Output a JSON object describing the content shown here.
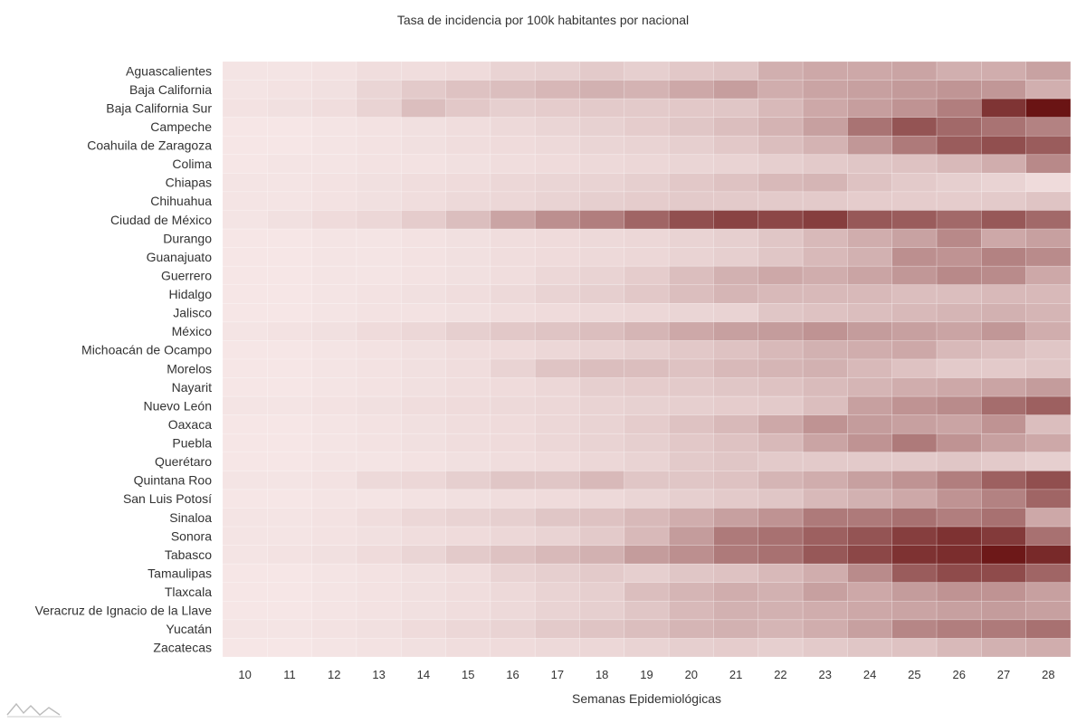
{
  "chart_data": {
    "type": "heatmap",
    "title": "Tasa de incidencia por 100k habitantes por nacional",
    "xlabel": "Semanas Epidemiológicas",
    "ylabel": "",
    "x": [
      "10",
      "11",
      "12",
      "13",
      "14",
      "15",
      "16",
      "17",
      "18",
      "19",
      "20",
      "21",
      "22",
      "23",
      "24",
      "25",
      "26",
      "27",
      "28"
    ],
    "y": [
      "Aguascalientes",
      "Baja California",
      "Baja California Sur",
      "Campeche",
      "Coahuila de Zaragoza",
      "Colima",
      "Chiapas",
      "Chihuahua",
      "Ciudad de México",
      "Durango",
      "Guanajuato",
      "Guerrero",
      "Hidalgo",
      "Jalisco",
      "México",
      "Michoacán de Ocampo",
      "Morelos",
      "Nayarit",
      "Nuevo León",
      "Oaxaca",
      "Puebla",
      "Querétaro",
      "Quintana Roo",
      "San Luis Potosí",
      "Sinaloa",
      "Sonora",
      "Tabasco",
      "Tamaulipas",
      "Tlaxcala",
      "Veracruz de Ignacio de la Llave",
      "Yucatán",
      "Zacatecas"
    ],
    "z": [
      [
        0.02,
        0.02,
        0.03,
        0.05,
        0.05,
        0.06,
        0.1,
        0.11,
        0.14,
        0.12,
        0.15,
        0.17,
        0.27,
        0.3,
        0.3,
        0.32,
        0.27,
        0.28,
        0.33
      ],
      [
        0.02,
        0.03,
        0.04,
        0.09,
        0.14,
        0.18,
        0.2,
        0.23,
        0.26,
        0.25,
        0.3,
        0.35,
        0.28,
        0.32,
        0.34,
        0.37,
        0.39,
        0.38,
        0.27
      ],
      [
        0.03,
        0.04,
        0.05,
        0.1,
        0.2,
        0.15,
        0.12,
        0.13,
        0.14,
        0.14,
        0.15,
        0.16,
        0.22,
        0.3,
        0.35,
        0.4,
        0.5,
        0.85,
        1.0
      ],
      [
        0.01,
        0.01,
        0.02,
        0.03,
        0.04,
        0.05,
        0.07,
        0.09,
        0.11,
        0.13,
        0.16,
        0.2,
        0.25,
        0.34,
        0.55,
        0.7,
        0.6,
        0.55,
        0.48
      ],
      [
        0.01,
        0.01,
        0.02,
        0.03,
        0.04,
        0.05,
        0.06,
        0.07,
        0.09,
        0.1,
        0.12,
        0.15,
        0.2,
        0.25,
        0.38,
        0.52,
        0.66,
        0.72,
        0.66
      ],
      [
        0.01,
        0.02,
        0.02,
        0.03,
        0.03,
        0.04,
        0.05,
        0.06,
        0.07,
        0.08,
        0.09,
        0.1,
        0.12,
        0.14,
        0.16,
        0.18,
        0.22,
        0.28,
        0.45
      ],
      [
        0.02,
        0.02,
        0.03,
        0.04,
        0.05,
        0.06,
        0.08,
        0.09,
        0.1,
        0.12,
        0.15,
        0.18,
        0.22,
        0.24,
        0.18,
        0.14,
        0.12,
        0.1,
        0.06
      ],
      [
        0.02,
        0.02,
        0.03,
        0.04,
        0.05,
        0.07,
        0.08,
        0.1,
        0.12,
        0.13,
        0.14,
        0.14,
        0.14,
        0.14,
        0.13,
        0.13,
        0.13,
        0.14,
        0.17
      ],
      [
        0.02,
        0.04,
        0.06,
        0.08,
        0.13,
        0.2,
        0.32,
        0.42,
        0.5,
        0.62,
        0.72,
        0.78,
        0.76,
        0.8,
        0.68,
        0.66,
        0.6,
        0.68,
        0.6
      ],
      [
        0.01,
        0.01,
        0.02,
        0.02,
        0.03,
        0.04,
        0.05,
        0.06,
        0.07,
        0.08,
        0.1,
        0.12,
        0.16,
        0.22,
        0.28,
        0.33,
        0.45,
        0.3,
        0.34
      ],
      [
        0.01,
        0.01,
        0.02,
        0.02,
        0.03,
        0.04,
        0.05,
        0.06,
        0.07,
        0.08,
        0.1,
        0.12,
        0.16,
        0.22,
        0.26,
        0.42,
        0.4,
        0.48,
        0.44
      ],
      [
        0.01,
        0.01,
        0.02,
        0.02,
        0.03,
        0.04,
        0.05,
        0.08,
        0.1,
        0.13,
        0.2,
        0.26,
        0.3,
        0.28,
        0.32,
        0.38,
        0.45,
        0.44,
        0.3
      ],
      [
        0.01,
        0.01,
        0.02,
        0.03,
        0.04,
        0.05,
        0.07,
        0.1,
        0.12,
        0.15,
        0.2,
        0.24,
        0.22,
        0.22,
        0.22,
        0.2,
        0.2,
        0.22,
        0.22
      ],
      [
        0.01,
        0.01,
        0.02,
        0.03,
        0.03,
        0.04,
        0.05,
        0.06,
        0.07,
        0.08,
        0.09,
        0.1,
        0.16,
        0.18,
        0.2,
        0.22,
        0.24,
        0.26,
        0.24
      ],
      [
        0.02,
        0.03,
        0.04,
        0.06,
        0.08,
        0.12,
        0.15,
        0.17,
        0.2,
        0.24,
        0.3,
        0.34,
        0.36,
        0.4,
        0.36,
        0.34,
        0.32,
        0.38,
        0.28
      ],
      [
        0.01,
        0.01,
        0.02,
        0.03,
        0.04,
        0.05,
        0.06,
        0.08,
        0.1,
        0.12,
        0.15,
        0.18,
        0.22,
        0.26,
        0.28,
        0.3,
        0.22,
        0.2,
        0.16
      ],
      [
        0.01,
        0.01,
        0.02,
        0.03,
        0.04,
        0.05,
        0.1,
        0.17,
        0.2,
        0.2,
        0.18,
        0.22,
        0.24,
        0.26,
        0.22,
        0.18,
        0.14,
        0.14,
        0.16
      ],
      [
        0.01,
        0.01,
        0.02,
        0.03,
        0.04,
        0.05,
        0.06,
        0.08,
        0.12,
        0.13,
        0.14,
        0.16,
        0.18,
        0.21,
        0.24,
        0.28,
        0.3,
        0.32,
        0.36
      ],
      [
        0.02,
        0.02,
        0.03,
        0.04,
        0.05,
        0.06,
        0.07,
        0.08,
        0.1,
        0.11,
        0.12,
        0.13,
        0.14,
        0.2,
        0.34,
        0.4,
        0.44,
        0.58,
        0.64
      ],
      [
        0.01,
        0.01,
        0.02,
        0.03,
        0.04,
        0.05,
        0.06,
        0.08,
        0.1,
        0.13,
        0.18,
        0.22,
        0.3,
        0.4,
        0.36,
        0.34,
        0.32,
        0.4,
        0.2
      ],
      [
        0.01,
        0.01,
        0.02,
        0.03,
        0.04,
        0.05,
        0.06,
        0.08,
        0.1,
        0.12,
        0.15,
        0.18,
        0.22,
        0.32,
        0.4,
        0.52,
        0.4,
        0.34,
        0.3
      ],
      [
        0.01,
        0.01,
        0.02,
        0.02,
        0.03,
        0.04,
        0.05,
        0.06,
        0.08,
        0.1,
        0.14,
        0.16,
        0.14,
        0.14,
        0.14,
        0.14,
        0.16,
        0.14,
        0.12
      ],
      [
        0.02,
        0.02,
        0.03,
        0.07,
        0.08,
        0.12,
        0.16,
        0.16,
        0.22,
        0.16,
        0.16,
        0.18,
        0.24,
        0.28,
        0.34,
        0.4,
        0.5,
        0.64,
        0.72
      ],
      [
        0.01,
        0.01,
        0.02,
        0.02,
        0.03,
        0.04,
        0.05,
        0.06,
        0.07,
        0.09,
        0.12,
        0.14,
        0.16,
        0.22,
        0.26,
        0.3,
        0.4,
        0.48,
        0.62
      ],
      [
        0.02,
        0.02,
        0.03,
        0.05,
        0.08,
        0.1,
        0.12,
        0.16,
        0.18,
        0.22,
        0.28,
        0.34,
        0.4,
        0.52,
        0.52,
        0.56,
        0.5,
        0.56,
        0.3
      ],
      [
        0.02,
        0.02,
        0.03,
        0.04,
        0.05,
        0.06,
        0.08,
        0.1,
        0.14,
        0.22,
        0.36,
        0.52,
        0.56,
        0.64,
        0.7,
        0.8,
        0.86,
        0.82,
        0.56
      ],
      [
        0.02,
        0.03,
        0.04,
        0.06,
        0.09,
        0.14,
        0.18,
        0.22,
        0.26,
        0.36,
        0.42,
        0.52,
        0.56,
        0.68,
        0.76,
        0.86,
        0.88,
        0.98,
        0.9
      ],
      [
        0.01,
        0.01,
        0.02,
        0.03,
        0.04,
        0.05,
        0.1,
        0.12,
        0.14,
        0.12,
        0.16,
        0.18,
        0.22,
        0.28,
        0.44,
        0.66,
        0.74,
        0.74,
        0.62
      ],
      [
        0.01,
        0.01,
        0.02,
        0.03,
        0.04,
        0.05,
        0.07,
        0.1,
        0.12,
        0.2,
        0.24,
        0.28,
        0.26,
        0.34,
        0.3,
        0.36,
        0.4,
        0.4,
        0.34
      ],
      [
        0.01,
        0.01,
        0.02,
        0.03,
        0.04,
        0.05,
        0.07,
        0.1,
        0.12,
        0.16,
        0.22,
        0.26,
        0.26,
        0.28,
        0.3,
        0.32,
        0.34,
        0.36,
        0.34
      ],
      [
        0.02,
        0.02,
        0.03,
        0.04,
        0.06,
        0.08,
        0.1,
        0.14,
        0.17,
        0.2,
        0.24,
        0.26,
        0.24,
        0.28,
        0.34,
        0.46,
        0.5,
        0.52,
        0.56
      ],
      [
        0.01,
        0.01,
        0.02,
        0.03,
        0.04,
        0.05,
        0.06,
        0.07,
        0.08,
        0.1,
        0.12,
        0.13,
        0.12,
        0.14,
        0.16,
        0.18,
        0.22,
        0.26,
        0.28
      ]
    ],
    "zlabel": "",
    "colorscale": [
      "#f7e8e8",
      "#6a1414"
    ],
    "grid": false,
    "legend": "none"
  }
}
